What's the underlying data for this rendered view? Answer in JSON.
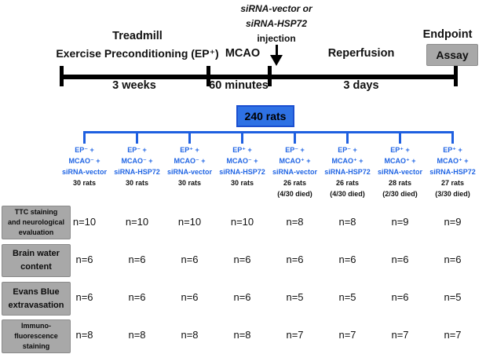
{
  "injection": {
    "line1": "siRNA-vector or",
    "line2": "siRNA-HSP72",
    "line3": "injection"
  },
  "timeline": {
    "phase1_label_top": "Treadmill",
    "phase1_label": "Exercise Preconditioning (EP⁺)",
    "phase2_label": "MCAO",
    "phase3_label": "Reperfusion",
    "endpoint_label": "Endpoint",
    "endpoint_assay": "Assay",
    "durations": [
      "3 weeks",
      "60 minutes",
      "3 days"
    ]
  },
  "cohort": {
    "total_label": "240 rats"
  },
  "groups": [
    {
      "line1": "EP⁻ +",
      "line2": "MCAO⁻ +",
      "line3": "siRNA-vector",
      "count": "30 rats",
      "died": ""
    },
    {
      "line1": "EP⁻ +",
      "line2": "MCAO⁻ +",
      "line3": "siRNA-HSP72",
      "count": "30 rats",
      "died": ""
    },
    {
      "line1": "EP⁺ +",
      "line2": "MCAO⁻ +",
      "line3": "siRNA-vector",
      "count": "30 rats",
      "died": ""
    },
    {
      "line1": "EP⁺ +",
      "line2": "MCAO⁻ +",
      "line3": "siRNA-HSP72",
      "count": "30 rats",
      "died": ""
    },
    {
      "line1": "EP⁻ +",
      "line2": "MCAO⁺ +",
      "line3": "siRNA-vector",
      "count": "26 rats",
      "died": "(4/30 died)"
    },
    {
      "line1": "EP⁻ +",
      "line2": "MCAO⁺ +",
      "line3": "siRNA-HSP72",
      "count": "26 rats",
      "died": "(4/30 died)"
    },
    {
      "line1": "EP⁺ +",
      "line2": "MCAO⁺ +",
      "line3": "siRNA-vector",
      "count": "28 rats",
      "died": "(2/30 died)"
    },
    {
      "line1": "EP⁺ +",
      "line2": "MCAO⁺ +",
      "line3": "siRNA-HSP72",
      "count": "27 rats",
      "died": "(3/30 died)"
    }
  ],
  "assays": [
    {
      "label_lines": [
        "TTC staining",
        "and neurological",
        "evaluation"
      ],
      "values": [
        "n=10",
        "n=10",
        "n=10",
        "n=10",
        "n=8",
        "n=8",
        "n=9",
        "n=9"
      ]
    },
    {
      "label_lines": [
        "Brain water",
        "content"
      ],
      "values": [
        "n=6",
        "n=6",
        "n=6",
        "n=6",
        "n=6",
        "n=6",
        "n=6",
        "n=6"
      ]
    },
    {
      "label_lines": [
        "Evans Blue",
        "extravasation"
      ],
      "values": [
        "n=6",
        "n=6",
        "n=6",
        "n=6",
        "n=5",
        "n=5",
        "n=6",
        "n=5"
      ]
    },
    {
      "label_lines": [
        "Immuno-",
        "fluorescence",
        "staining"
      ],
      "values": [
        "n=8",
        "n=8",
        "n=8",
        "n=8",
        "n=7",
        "n=7",
        "n=7",
        "n=7"
      ]
    }
  ],
  "colors": {
    "tree_blue": "#1e5fe0",
    "cohort_box_fill": "#2e71e4",
    "cohort_box_border": "#1b4fd0",
    "gray_box": "#a8a8a8",
    "timeline_black": "#000000"
  }
}
